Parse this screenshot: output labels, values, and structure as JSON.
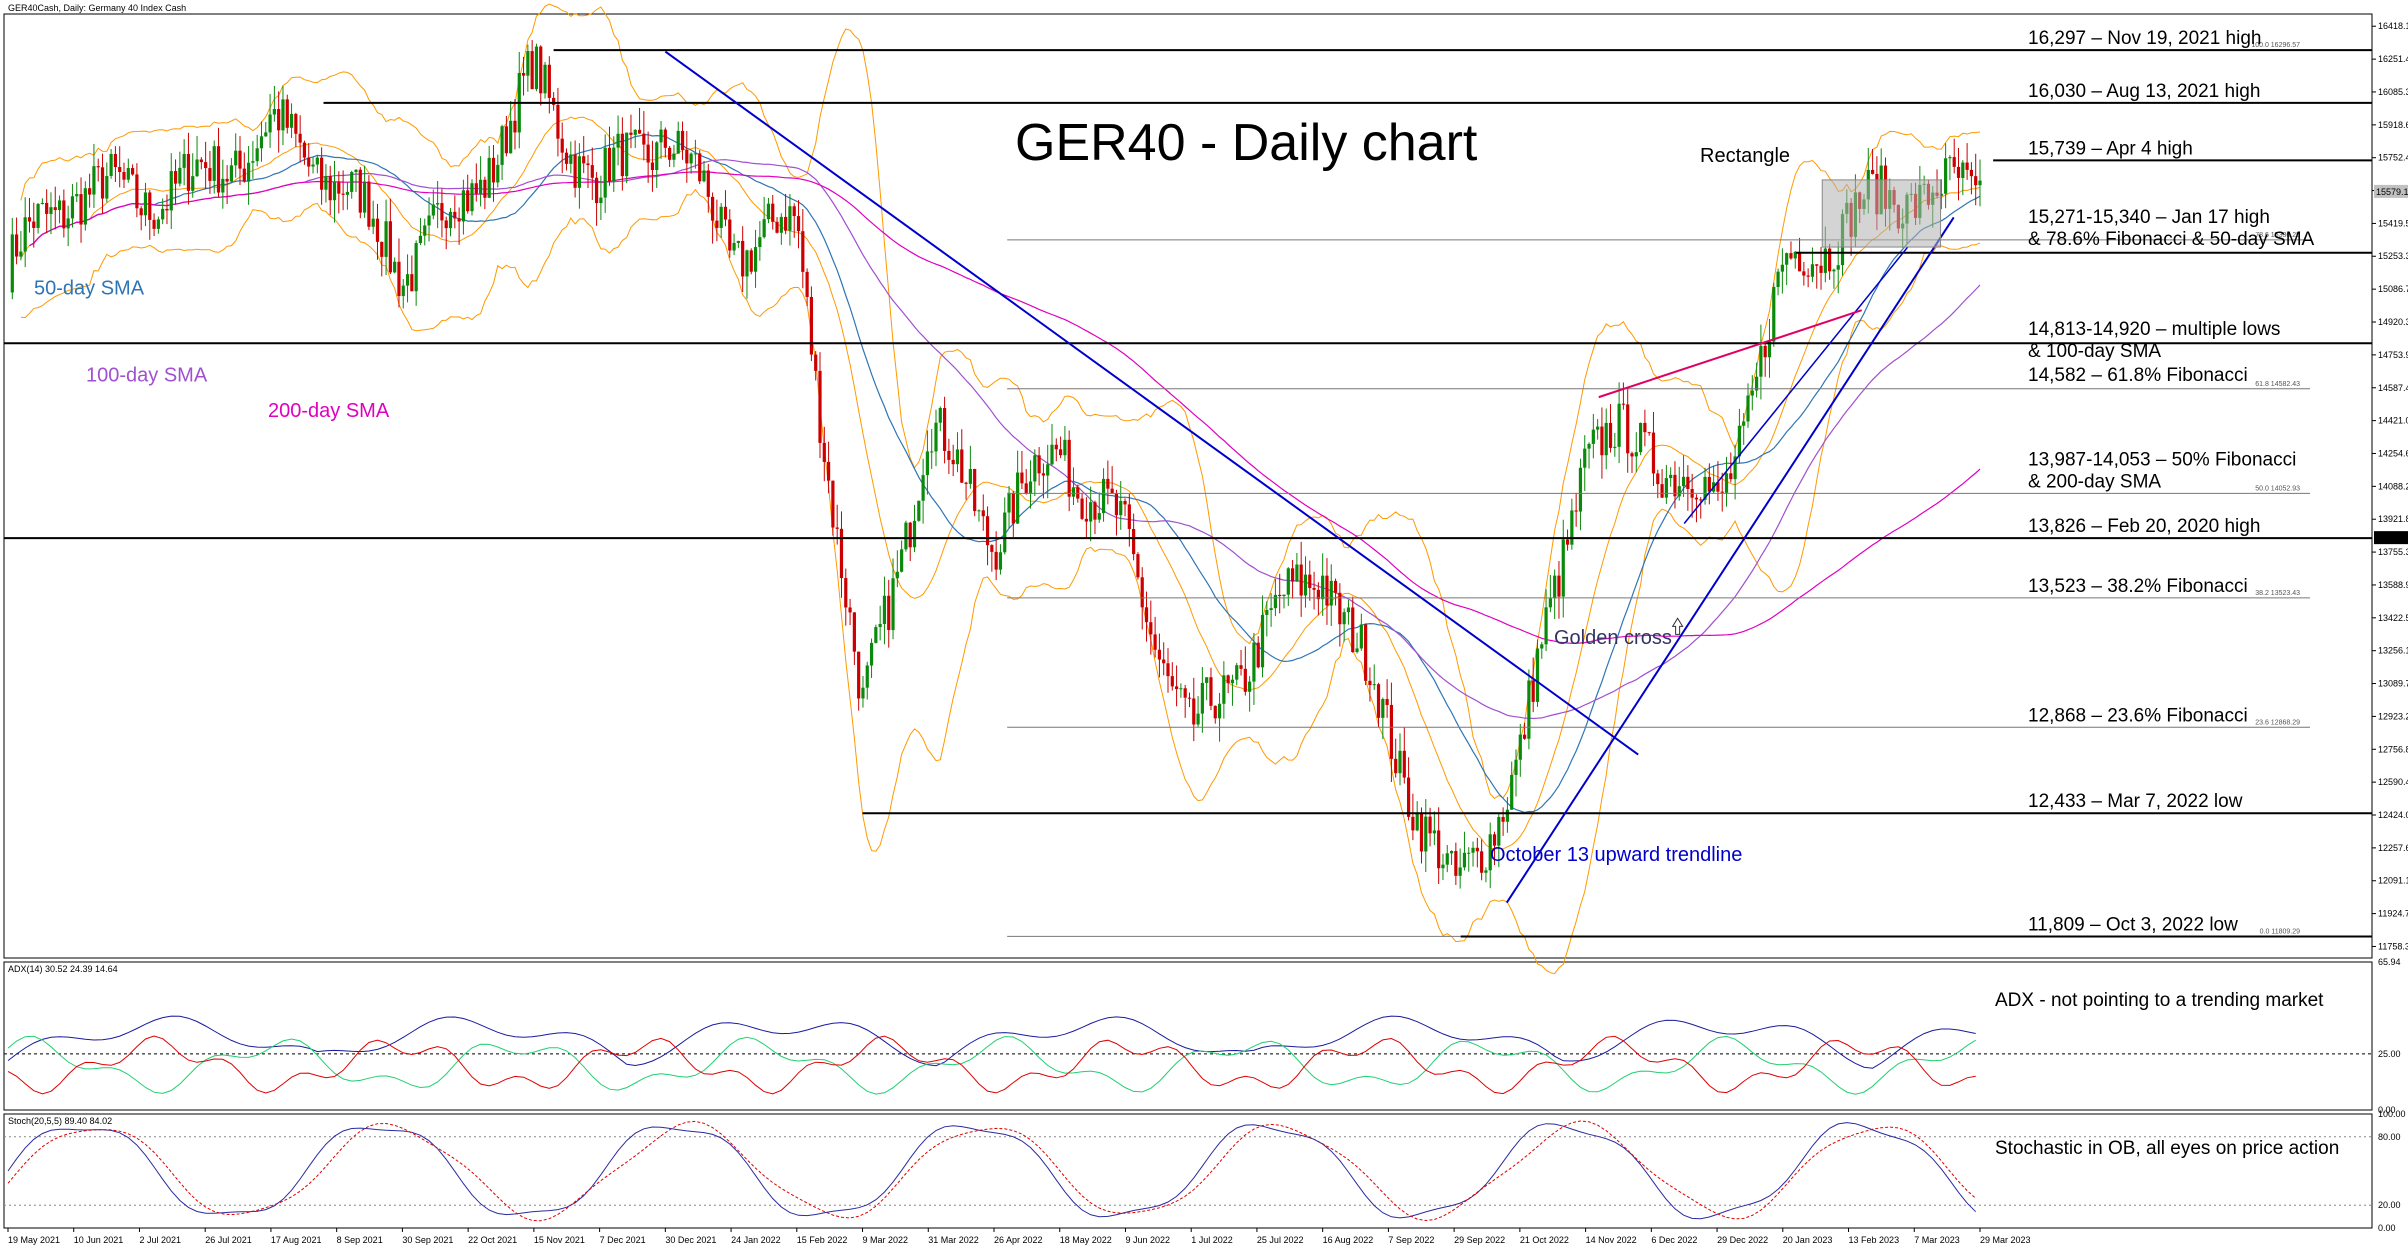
{
  "chart_data": {
    "type": "line",
    "symbol_header": "GER40Cash, Daily:  Germany 40 Index Cash",
    "title": "GER40 - Daily chart",
    "x_dates": [
      "19 May 2021",
      "10 Jun 2021",
      "2 Jul 2021",
      "26 Jul 2021",
      "17 Aug 2021",
      "8 Sep 2021",
      "30 Sep 2021",
      "22 Oct 2021",
      "15 Nov 2021",
      "7 Dec 2021",
      "30 Dec 2021",
      "24 Jan 2022",
      "15 Feb 2022",
      "9 Mar 2022",
      "31 Mar 2022",
      "26 Apr 2022",
      "18 May 2022",
      "9 Jun 2022",
      "1 Jul 2022",
      "25 Jul 2022",
      "16 Aug 2022",
      "7 Sep 2022",
      "29 Sep 2022",
      "21 Oct 2022",
      "14 Nov 2022",
      "6 Dec 2022",
      "29 Dec 2022",
      "20 Jan 2023",
      "13 Feb 2023",
      "7 Mar 2023",
      "29 Mar 2023"
    ],
    "price_axis": {
      "ylim": [
        11700,
        16480
      ],
      "ticks": [
        "16418.15",
        "16251.49",
        "16085.33",
        "15918.65",
        "15752.40",
        "15586.01",
        "15419.54",
        "15253.37",
        "15086.71",
        "14920.33",
        "14753.96",
        "14587.49",
        "14421.07",
        "14254.65",
        "14088.23",
        "13921.81",
        "13755.39",
        "13588.97",
        "13422.55",
        "13256.13",
        "13089.71",
        "12923.29",
        "12756.87",
        "12590.45",
        "12424.03",
        "12257.61",
        "12091.19",
        "11924.77",
        "11758.35"
      ],
      "current_price_label": "15579.17",
      "marked_level_label": "13826.00"
    },
    "fibonacci": [
      {
        "label": "100.0 16296.57",
        "value": 16296.57
      },
      {
        "label": "78.6 15336.25",
        "value": 15336.25
      },
      {
        "label": "61.8 14582.43",
        "value": 14582.43
      },
      {
        "label": "50.0 14052.93",
        "value": 14052.93
      },
      {
        "label": "38.2 13523.43",
        "value": 13523.43
      },
      {
        "label": "23.6 12868.29",
        "value": 12868.29
      },
      {
        "label": "0.0 11809.29",
        "value": 11809.29
      }
    ],
    "levels": [
      {
        "label": "16,297 – Nov 19, 2021 high",
        "value": 16297
      },
      {
        "label": "16,030 – Aug 13, 2021 high",
        "value": 16030
      },
      {
        "label": "15,739 – Apr 4 high",
        "value": 15739
      },
      {
        "label": "15,271-15,340 – Jan 17 high",
        "label2": "& 78.6% Fibonacci & 50-day SMA",
        "value": 15271
      },
      {
        "label": "14,813-14,920 – multiple lows",
        "label2": "& 100-day SMA",
        "value": 14813
      },
      {
        "label": "14,582 – 61.8% Fibonacci",
        "value": 14582
      },
      {
        "label": "13,987-14,053 – 50% Fibonacci",
        "label2": "& 200-day SMA",
        "value": 14053
      },
      {
        "label": "13,826 – Feb 20, 2020 high",
        "value": 13826
      },
      {
        "label": "13,523 – 38.2% Fibonacci",
        "value": 13523
      },
      {
        "label": "12,868 – 23.6% Fibonacci",
        "value": 12868
      },
      {
        "label": "12,433 – Mar 7, 2022 low",
        "value": 12433
      },
      {
        "label": "11,809 – Oct 3, 2022 low",
        "value": 11809
      }
    ],
    "close_keypoints": [
      [
        "19 May 2021",
        15200
      ],
      [
        "10 Jun 2021",
        15600
      ],
      [
        "2 Jul 2021",
        15550
      ],
      [
        "26 Jul 2021",
        15650
      ],
      [
        "17 Aug 2021",
        15900
      ],
      [
        "8 Sep 2021",
        15650
      ],
      [
        "30 Sep 2021",
        15200
      ],
      [
        "22 Oct 2021",
        15550
      ],
      [
        "15 Nov 2021",
        16150
      ],
      [
        "7 Dec 2021",
        15600
      ],
      [
        "30 Dec 2021",
        15900
      ],
      [
        "24 Jan 2022",
        15300
      ],
      [
        "15 Feb 2022",
        15400
      ],
      [
        "9 Mar 2022",
        12900
      ],
      [
        "31 Mar 2022",
        14400
      ],
      [
        "26 Apr 2022",
        13850
      ],
      [
        "18 May 2022",
        14300
      ],
      [
        "9 Jun 2022",
        13800
      ],
      [
        "1 Jul 2022",
        12800
      ],
      [
        "25 Jul 2022",
        13300
      ],
      [
        "16 Aug 2022",
        13700
      ],
      [
        "7 Sep 2022",
        12850
      ],
      [
        "29 Sep 2022",
        12000
      ],
      [
        "21 Oct 2022",
        12700
      ],
      [
        "14 Nov 2022",
        14300
      ],
      [
        "6 Dec 2022",
        14300
      ],
      [
        "29 Dec 2022",
        13950
      ],
      [
        "20 Jan 2023",
        15150
      ],
      [
        "13 Feb 2023",
        15450
      ],
      [
        "7 Mar 2023",
        15600
      ],
      [
        "29 Mar 2023",
        15550
      ]
    ],
    "indicator_labels": {
      "sma50": "50-day SMA",
      "sma100": "100-day SMA",
      "sma200": "200-day SMA",
      "rectangle": "Rectangle",
      "golden_cross": "Golden cross",
      "trendline": "October 13 upward trendline"
    },
    "adx": {
      "header": "ADX(14) 30.52 24.39 14.64",
      "ylim": [
        0,
        65.94
      ],
      "ticks": [
        "65.94",
        "25.00",
        "0.00"
      ],
      "reference_level": 25,
      "adx": 30.52,
      "plus_di": 24.39,
      "minus_di": 14.64,
      "comment": "ADX - not pointing to a trending market"
    },
    "stochastic": {
      "header": "Stoch(20,5,5) 89.40 84.02",
      "ylim": [
        0,
        100
      ],
      "ticks": [
        "100.00",
        "80.00",
        "20.00",
        "0.00"
      ],
      "main": 89.4,
      "signal": 84.02,
      "comment": "Stochastic in OB, all eyes on price action"
    },
    "colors": {
      "candle_up": "#0a8a0a",
      "candle_down": "#cc0000",
      "sma50": "#2e75b6",
      "sma100": "#a050d0",
      "sma200": "#e000c0",
      "bollinger": "#ff9900",
      "trendline": "#0000cc",
      "neckline": "#e00060",
      "adx_line": "#1a1aa0",
      "plus_di": "#20d070",
      "minus_di": "#e00000",
      "stoch_main": "#2a2aa0",
      "stoch_signal": "#e00000"
    }
  }
}
